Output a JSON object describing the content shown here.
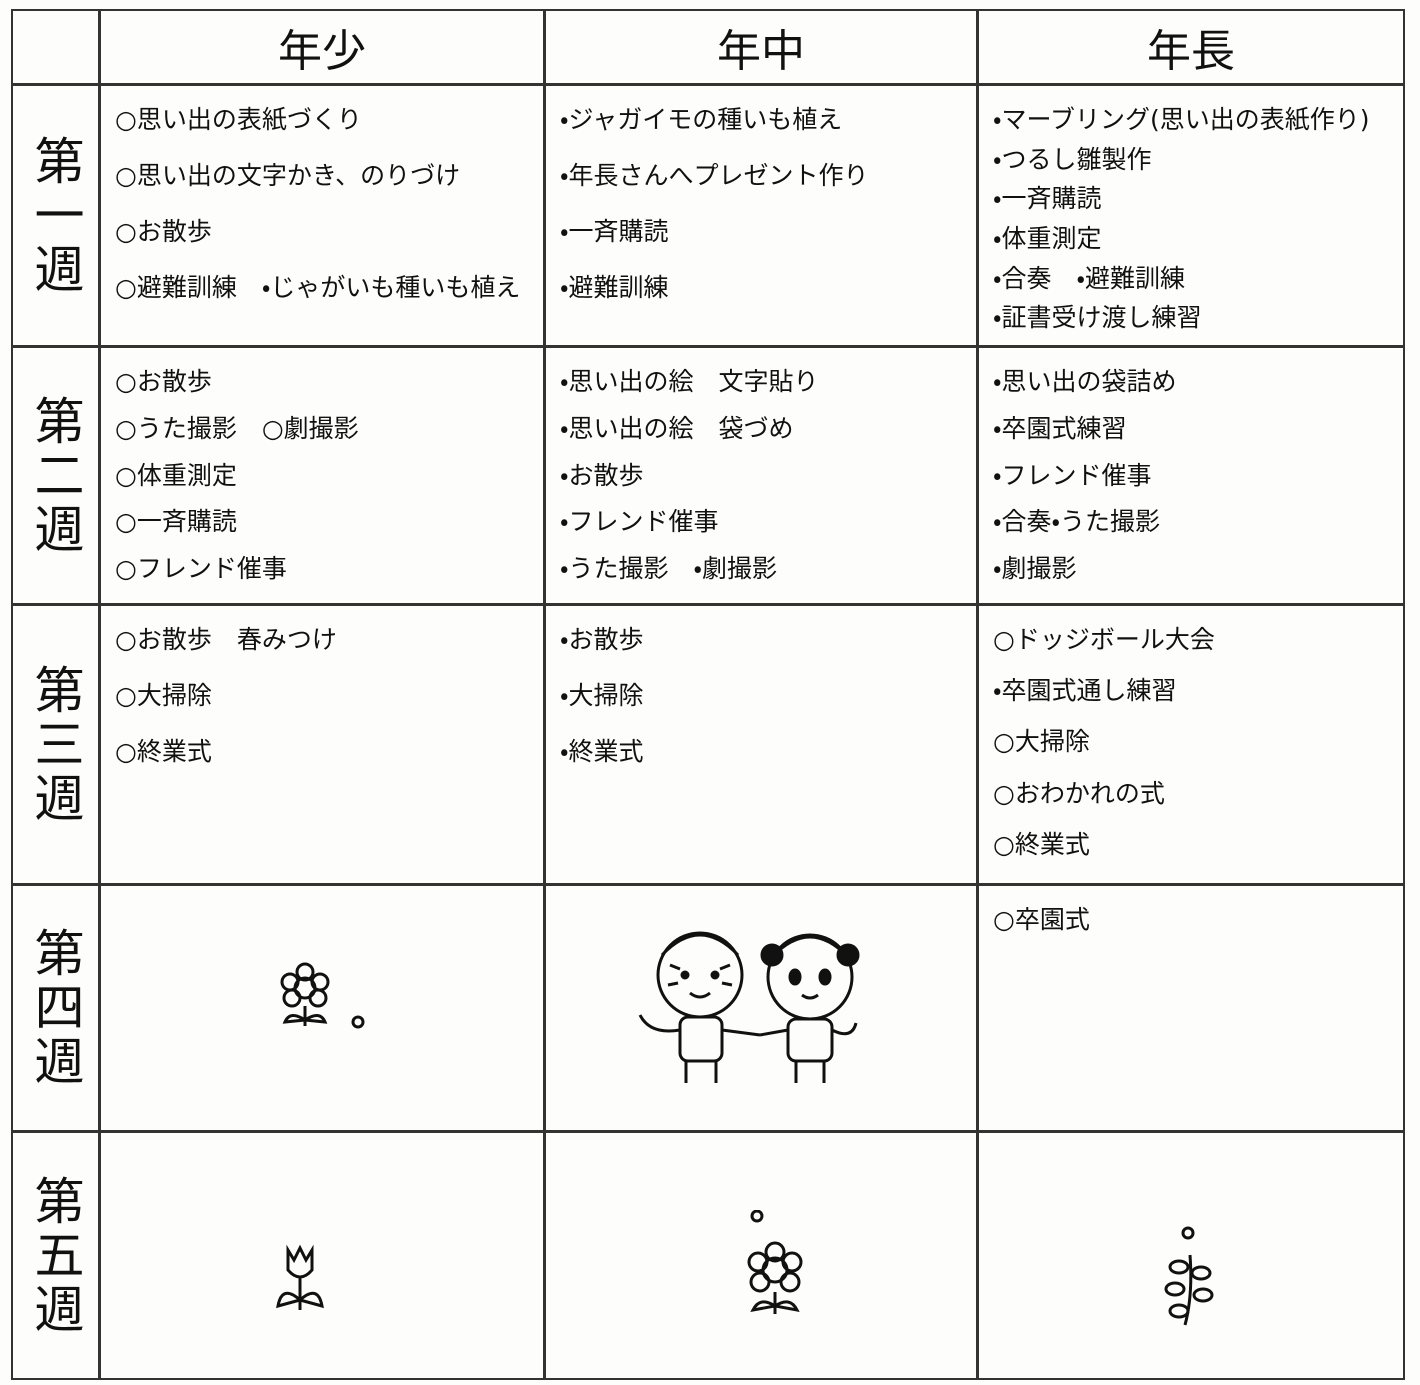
{
  "table": {
    "columns": [
      "年少",
      "年中",
      "年長"
    ],
    "rows": [
      {
        "label": "第一週",
        "cells": [
          [
            "○思い出の表紙づくり",
            "○思い出の文字かき、のりづけ",
            "○お散歩",
            "○避難訓練　・じゃがいも種いも植え"
          ],
          [
            "・ジャガイモの種いも植え",
            "・年長さんへプレゼント作り",
            "・一斉購読",
            "・避難訓練"
          ],
          [
            "・マーブリング(思い出の表紙作り)",
            "・つるし雛製作",
            "・一斉購読",
            "・体重測定",
            "・合奏　・避難訓練",
            "・証書受け渡し練習"
          ]
        ]
      },
      {
        "label": "第二週",
        "cells": [
          [
            "○お散歩",
            "○うた撮影　○劇撮影",
            "○体重測定",
            "○一斉購読",
            "○フレンド催事"
          ],
          [
            "・思い出の絵　文字貼り",
            "・思い出の絵　袋づめ",
            "・お散歩",
            "・フレンド催事",
            "・うた撮影　・劇撮影"
          ],
          [
            "・思い出の袋詰め",
            "・卒園式練習",
            "・フレンド催事",
            "・合奏・うた撮影",
            "・劇撮影"
          ]
        ]
      },
      {
        "label": "第三週",
        "cells": [
          [
            "○お散歩　春みつけ",
            "○大掃除",
            "○終業式"
          ],
          [
            "・お散歩",
            "・大掃除",
            "・終業式"
          ],
          [
            "○ドッジボール大会",
            "・卒園式通し練習",
            "○大掃除",
            "○おわかれの式",
            "○終業式"
          ]
        ]
      },
      {
        "label": "第四週",
        "cells": [
          [],
          [],
          [
            "○卒園式"
          ]
        ]
      },
      {
        "label": "第五週",
        "cells": [
          [],
          [],
          []
        ]
      }
    ]
  }
}
